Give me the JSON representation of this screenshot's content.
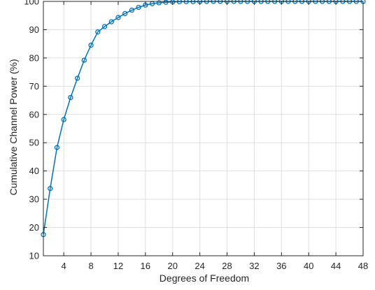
{
  "chart_data": {
    "type": "line",
    "title": "",
    "xlabel": "Degrees of Freedom",
    "ylabel": "Cumulative Channel Power (%)",
    "xlim": [
      1,
      48
    ],
    "ylim": [
      10,
      100
    ],
    "xticks": [
      4,
      8,
      12,
      16,
      20,
      24,
      28,
      32,
      36,
      40,
      44,
      48
    ],
    "yticks": [
      10,
      20,
      30,
      40,
      50,
      60,
      70,
      80,
      90,
      100
    ],
    "grid": true,
    "marker": "circle",
    "colors": {
      "series": "#0072BD",
      "axis": "#262626",
      "grid": "#dfdfdf"
    },
    "series": [
      {
        "x": [
          1,
          2,
          3,
          4,
          5,
          6,
          7,
          8,
          9,
          10,
          11,
          12,
          13,
          14,
          15,
          16,
          17,
          18,
          19,
          20,
          21,
          22,
          23,
          24,
          25,
          26,
          27,
          28,
          29,
          30,
          31,
          32,
          33,
          34,
          35,
          36,
          37,
          38,
          39,
          40,
          41,
          42,
          43,
          44,
          45,
          46,
          47,
          48
        ],
        "values": [
          17.5,
          33.8,
          48.3,
          58.2,
          66.0,
          72.8,
          79.2,
          84.5,
          89.2,
          91.1,
          92.8,
          94.3,
          95.7,
          96.9,
          97.9,
          98.7,
          99.2,
          99.5,
          99.7,
          99.8,
          99.9,
          99.9,
          99.9,
          99.9,
          100,
          100,
          100,
          100,
          100,
          100,
          100,
          100,
          100,
          100,
          100,
          100,
          100,
          100,
          100,
          100,
          100,
          100,
          100,
          100,
          100,
          100,
          100,
          100
        ]
      }
    ]
  }
}
